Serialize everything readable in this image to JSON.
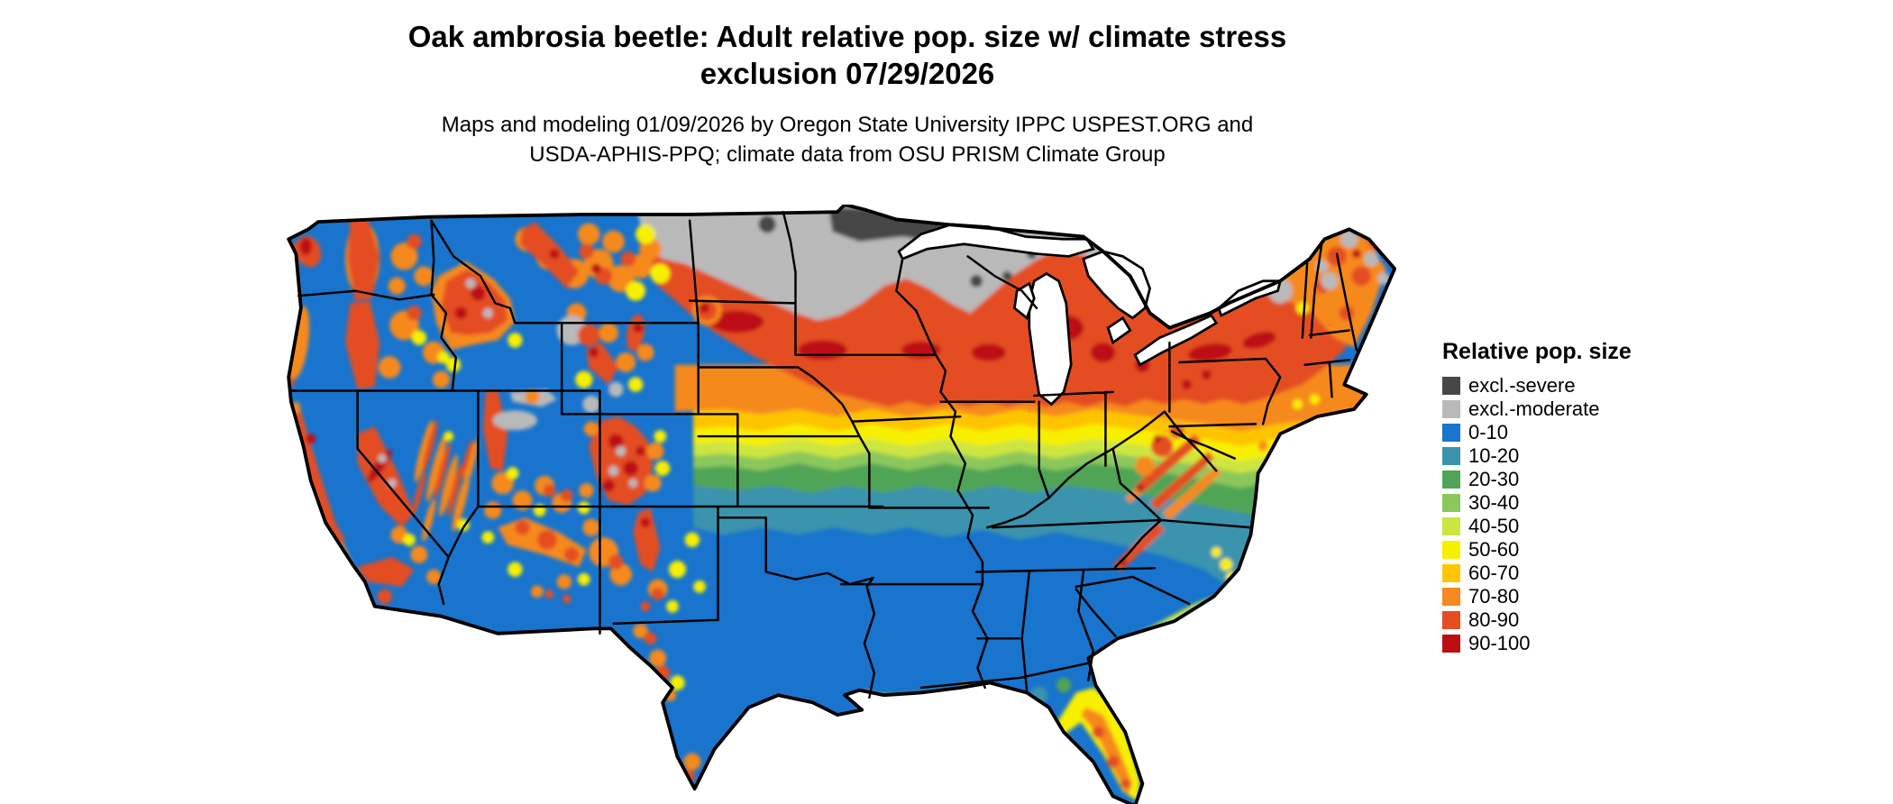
{
  "title": {
    "line1": "Oak ambrosia beetle: Adult relative pop. size w/ climate stress",
    "line2": "exclusion 07/29/2026"
  },
  "subtitle": {
    "line1": "Maps and modeling 01/09/2026 by Oregon State University IPPC USPEST.ORG and",
    "line2": "USDA-APHIS-PPQ; climate data from OSU PRISM Climate Group"
  },
  "legend": {
    "title": "Relative pop. size",
    "items": [
      {
        "label": "excl.-severe",
        "color": "#474747"
      },
      {
        "label": "excl.-moderate",
        "color": "#b9b9b9"
      },
      {
        "label": "0-10",
        "color": "#1874cd"
      },
      {
        "label": "10-20",
        "color": "#3a93ae"
      },
      {
        "label": "20-30",
        "color": "#4fa457"
      },
      {
        "label": "30-40",
        "color": "#8cc75c"
      },
      {
        "label": "40-50",
        "color": "#cde53f"
      },
      {
        "label": "50-60",
        "color": "#f7ef00"
      },
      {
        "label": "60-70",
        "color": "#ffc403"
      },
      {
        "label": "70-80",
        "color": "#f6891f"
      },
      {
        "label": "80-90",
        "color": "#e44d22"
      },
      {
        "label": "90-100",
        "color": "#bd0f12"
      }
    ]
  }
}
